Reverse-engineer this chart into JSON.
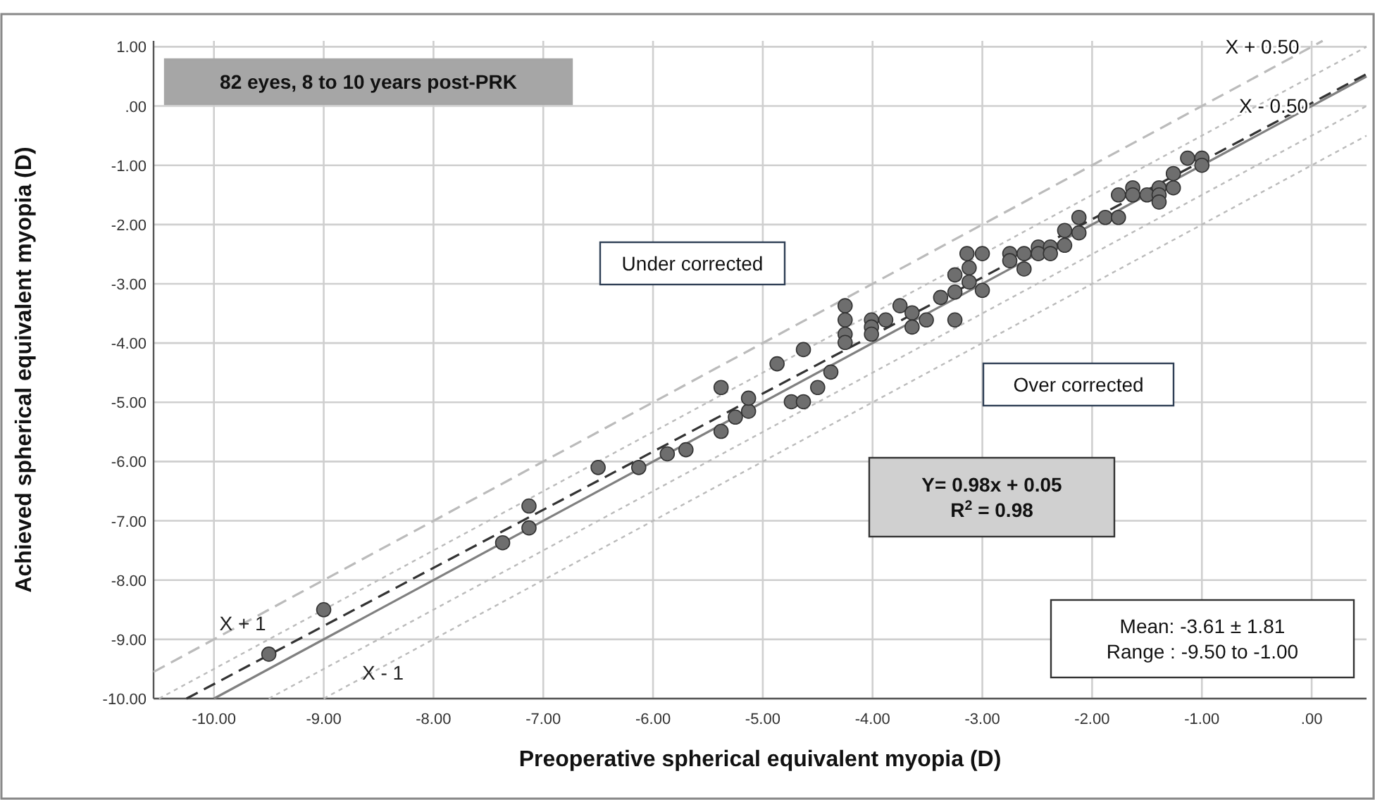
{
  "chart_data": {
    "type": "scatter",
    "xlabel": "Preoperative spherical equivalent myopia (D)",
    "ylabel": "Achieved spherical equivalent myopia (D)",
    "xlim": [
      -10.55,
      0.5
    ],
    "ylim": [
      -10,
      1.1
    ],
    "xticks": [
      {
        "value": -10,
        "label": "-10.00"
      },
      {
        "value": -9,
        "label": "-9.00"
      },
      {
        "value": -8,
        "label": "-8.00"
      },
      {
        "value": -7,
        "label": "-7.00"
      },
      {
        "value": -6,
        "label": "-6.00"
      },
      {
        "value": -5,
        "label": "-5.00"
      },
      {
        "value": -4,
        "label": "-4.00"
      },
      {
        "value": -3,
        "label": "-3.00"
      },
      {
        "value": -2,
        "label": "-2.00"
      },
      {
        "value": -1,
        "label": "-1.00"
      },
      {
        "value": 0,
        "label": ".00"
      }
    ],
    "yticks": [
      {
        "value": 1,
        "label": "1.00"
      },
      {
        "value": 0,
        "label": ".00"
      },
      {
        "value": -1,
        "label": "-1.00"
      },
      {
        "value": -2,
        "label": "-2.00"
      },
      {
        "value": -3,
        "label": "-3.00"
      },
      {
        "value": -4,
        "label": "-4.00"
      },
      {
        "value": -5,
        "label": "-5.00"
      },
      {
        "value": -6,
        "label": "-6.00"
      },
      {
        "value": -7,
        "label": "-7.00"
      },
      {
        "value": -8,
        "label": "-8.00"
      },
      {
        "value": -9,
        "label": "-9.00"
      },
      {
        "value": -10,
        "label": "-10.00"
      }
    ],
    "grid": true,
    "series": [
      {
        "type": "line",
        "marker": "none",
        "color": "#bbbbbb",
        "line_style": "dashed",
        "x": [
          -10.55,
          0.1
        ],
        "values": [
          -9.55,
          1.1
        ]
      },
      {
        "type": "line",
        "marker": "none",
        "color": "#bbbbbb",
        "line_style": "dotted",
        "x": [
          -10.5,
          0.5
        ],
        "values": [
          -10,
          1.0
        ]
      },
      {
        "type": "line",
        "marker": "none",
        "color": "#bbbbbb",
        "line_style": "dotted",
        "x": [
          -9.5,
          0.5
        ],
        "values": [
          -10,
          0
        ]
      },
      {
        "type": "line",
        "marker": "none",
        "color": "#bbbbbb",
        "line_style": "dotted",
        "x": [
          -9,
          0.5
        ],
        "values": [
          -10,
          -0.5
        ]
      },
      {
        "type": "line",
        "marker": "none",
        "color": "#808080",
        "line_style": "solid",
        "x": [
          -10,
          0.5
        ],
        "values": [
          -10,
          0.5
        ]
      },
      {
        "type": "line",
        "marker": "none",
        "color": "#333333",
        "line_style": "dashed",
        "x": [
          -10.25,
          0.5
        ],
        "values": [
          -10,
          0.54
        ]
      },
      {
        "marker": "circle",
        "color": "#6e6e6e",
        "x": [
          -9.5,
          -9.0,
          -7.37,
          -7.13,
          -7.13,
          -6.5,
          -6.13,
          -5.87,
          -5.7,
          -5.38,
          -5.38,
          -5.25,
          -5.13,
          -5.13,
          -4.87,
          -4.74,
          -4.63,
          -4.63,
          -4.5,
          -4.38,
          -4.25,
          -4.25,
          -4.25,
          -4.25,
          -4.01,
          -4.01,
          -4.01,
          -3.88,
          -3.75,
          -3.64,
          -3.64,
          -3.51,
          -3.38,
          -3.25,
          -3.25,
          -3.25,
          -3.12,
          -3.12,
          -3.0,
          -3.14,
          -3.0,
          -2.75,
          -2.75,
          -2.62,
          -2.62,
          -2.49,
          -2.49,
          -2.38,
          -2.38,
          -2.25,
          -2.25,
          -2.12,
          -2.12,
          -1.88,
          -1.76,
          -1.76,
          -1.63,
          -1.63,
          -1.5,
          -1.39,
          -1.39,
          -1.39,
          -1.26,
          -1.26,
          -1.13,
          -1.0,
          -1.0
        ],
        "values": [
          -9.25,
          -8.5,
          -7.37,
          -7.12,
          -6.75,
          -6.1,
          -6.1,
          -5.87,
          -5.8,
          -5.49,
          -4.75,
          -5.25,
          -5.15,
          -4.93,
          -4.35,
          -4.99,
          -4.99,
          -4.11,
          -4.75,
          -4.49,
          -3.37,
          -3.61,
          -3.85,
          -3.99,
          -3.61,
          -3.73,
          -3.85,
          -3.61,
          -3.37,
          -3.49,
          -3.73,
          -3.61,
          -3.23,
          -3.14,
          -2.85,
          -3.61,
          -2.73,
          -2.97,
          -3.11,
          -2.49,
          -2.49,
          -2.49,
          -2.61,
          -2.49,
          -2.75,
          -2.38,
          -2.49,
          -2.38,
          -2.49,
          -2.35,
          -2.1,
          -2.14,
          -1.88,
          -1.88,
          -1.88,
          -1.5,
          -1.38,
          -1.5,
          -1.5,
          -1.38,
          -1.5,
          -1.62,
          -1.38,
          -1.14,
          -0.88,
          -0.88,
          -1.0
        ]
      }
    ],
    "annotations": [
      "82 eyes, 8 to 10 years post-PRK",
      "Under corrected",
      "Over corrected",
      "Y= 0.98x + 0.05\nR$^{2}$ = 0.98",
      "Mean: -3.61 ± 1.81\nRange : -9.50 to -1.00",
      "X + 0.50",
      "X - 0.50",
      {
        "text": "X + 1",
        "x": -9.95,
        "y": -8.85
      },
      {
        "text": "X - 1",
        "x": -8.65,
        "y": -9.68
      }
    ]
  }
}
